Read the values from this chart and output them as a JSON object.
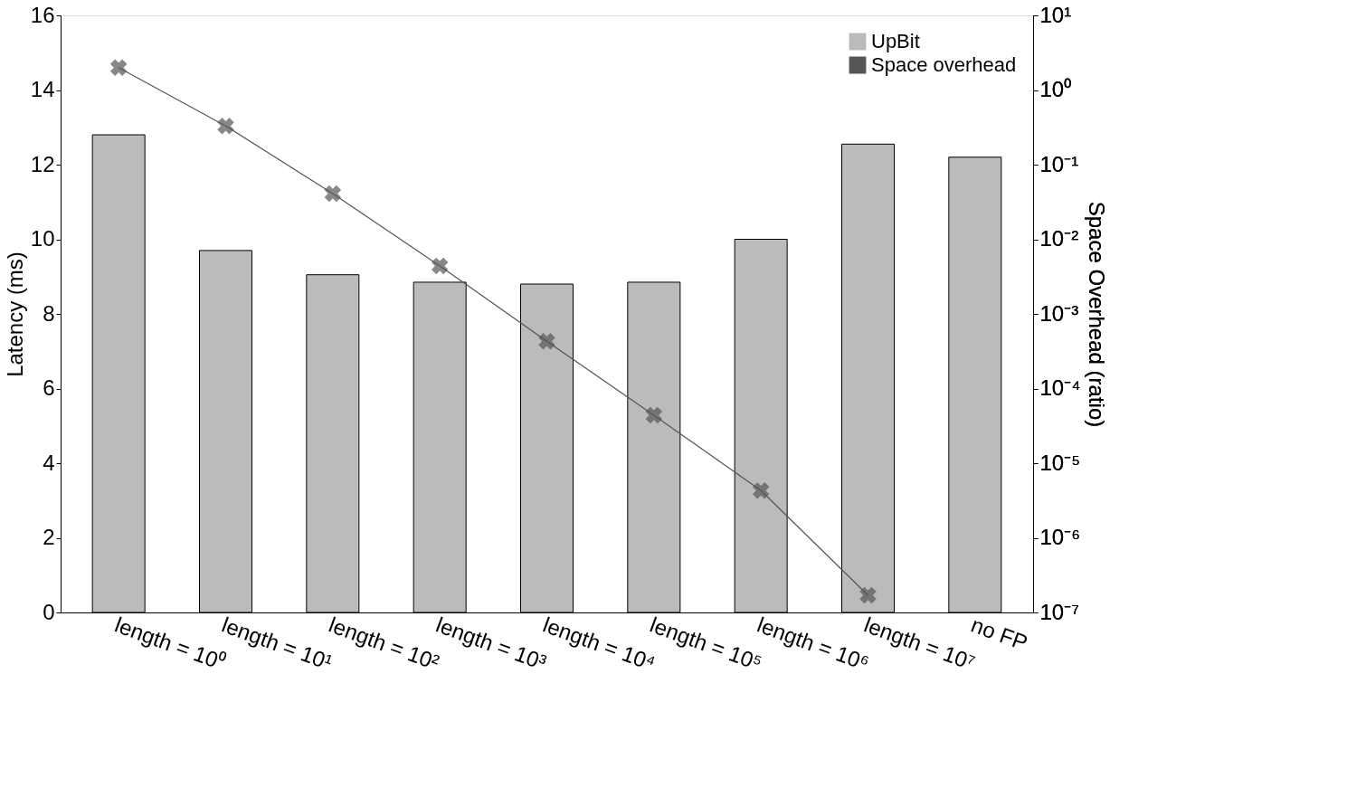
{
  "chart_data": {
    "type": "bar",
    "categories": [
      "length = 10⁰",
      "length = 10¹",
      "length = 10²",
      "length = 10³",
      "length = 10⁴",
      "length = 10⁵",
      "length = 10⁶",
      "length = 10⁷",
      "no FP"
    ],
    "ylabel": "Latency (ms)",
    "y2label": "Space Overhead (ratio)",
    "ylim": [
      0,
      16
    ],
    "yticks": [
      0,
      2,
      4,
      6,
      8,
      10,
      12,
      14,
      16
    ],
    "y2lim": [
      1e-07,
      10
    ],
    "log": "y2",
    "y2ticks": [
      {
        "value": 1e-07,
        "label": "10⁻⁷"
      },
      {
        "value": 1e-06,
        "label": "10⁻⁶"
      },
      {
        "value": 1e-05,
        "label": "10⁻⁵"
      },
      {
        "value": 0.0001,
        "label": "10⁻⁴"
      },
      {
        "value": 0.001,
        "label": "10⁻³"
      },
      {
        "value": 0.01,
        "label": "10⁻²"
      },
      {
        "value": 0.1,
        "label": "10⁻¹"
      },
      {
        "value": 1,
        "label": "10⁰"
      },
      {
        "value": 10,
        "label": "10¹"
      }
    ],
    "series": [
      {
        "name": "UpBit",
        "color": "#bbbbbb",
        "values": [
          12.8,
          9.7,
          9.05,
          8.85,
          8.8,
          8.85,
          10.0,
          12.55,
          12.2
        ]
      },
      {
        "name": "Space overhead",
        "type": "line",
        "axis": "y2",
        "color": "#555555",
        "marker": "cross",
        "values": [
          2.0,
          0.33,
          0.041,
          0.0044,
          0.00043,
          4.4e-05,
          4.3e-06,
          1.7e-07,
          null
        ]
      }
    ],
    "legend": "top right",
    "grid": false
  }
}
